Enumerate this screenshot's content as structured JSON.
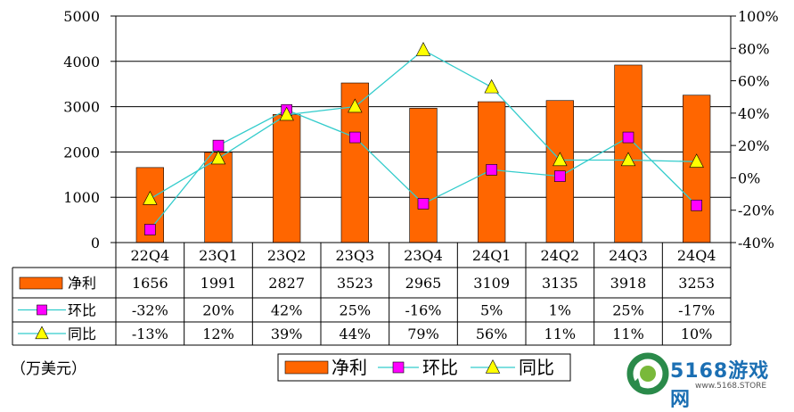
{
  "chart_data": {
    "type": "bar",
    "categories": [
      "22Q4",
      "23Q1",
      "23Q2",
      "23Q3",
      "23Q4",
      "24Q1",
      "24Q2",
      "24Q3",
      "24Q4"
    ],
    "series": [
      {
        "name": "净利",
        "kind": "bar",
        "axis": "left",
        "values": [
          1656,
          1991,
          2827,
          3523,
          2965,
          3109,
          3135,
          3918,
          3253
        ],
        "labels": [
          "1656",
          "1991",
          "2827",
          "3523",
          "2965",
          "3109",
          "3135",
          "3918",
          "3253"
        ],
        "color": "#FF6600"
      },
      {
        "name": "环比",
        "kind": "line",
        "axis": "right",
        "marker": "square",
        "values": [
          -32,
          20,
          42,
          25,
          -16,
          5,
          1,
          25,
          -17
        ],
        "labels": [
          "-32%",
          "20%",
          "42%",
          "25%",
          "-16%",
          "5%",
          "1%",
          "25%",
          "-17%"
        ],
        "color": "#FF00FF",
        "line_color": "#33CCCC"
      },
      {
        "name": "同比",
        "kind": "line",
        "axis": "right",
        "marker": "triangle",
        "values": [
          -13,
          12,
          39,
          44,
          79,
          56,
          11,
          11,
          10
        ],
        "labels": [
          "-13%",
          "12%",
          "39%",
          "44%",
          "79%",
          "56%",
          "11%",
          "11%",
          "10%"
        ],
        "color": "#FFFF00",
        "line_color": "#33CCCC"
      }
    ],
    "y_left": {
      "min": 0,
      "max": 5000,
      "ticks": [
        "0",
        "1000",
        "2000",
        "3000",
        "4000",
        "5000"
      ]
    },
    "y_right": {
      "min": -40,
      "max": 100,
      "ticks": [
        "-40%",
        "-20%",
        "0%",
        "20%",
        "40%",
        "60%",
        "80%",
        "100%"
      ]
    },
    "grid": true,
    "legend": "bottom-center",
    "data_table": true
  },
  "unit_label": "（万美元）",
  "watermark": {
    "brand": "5168游戏网",
    "url": "www.5168.STORE"
  }
}
